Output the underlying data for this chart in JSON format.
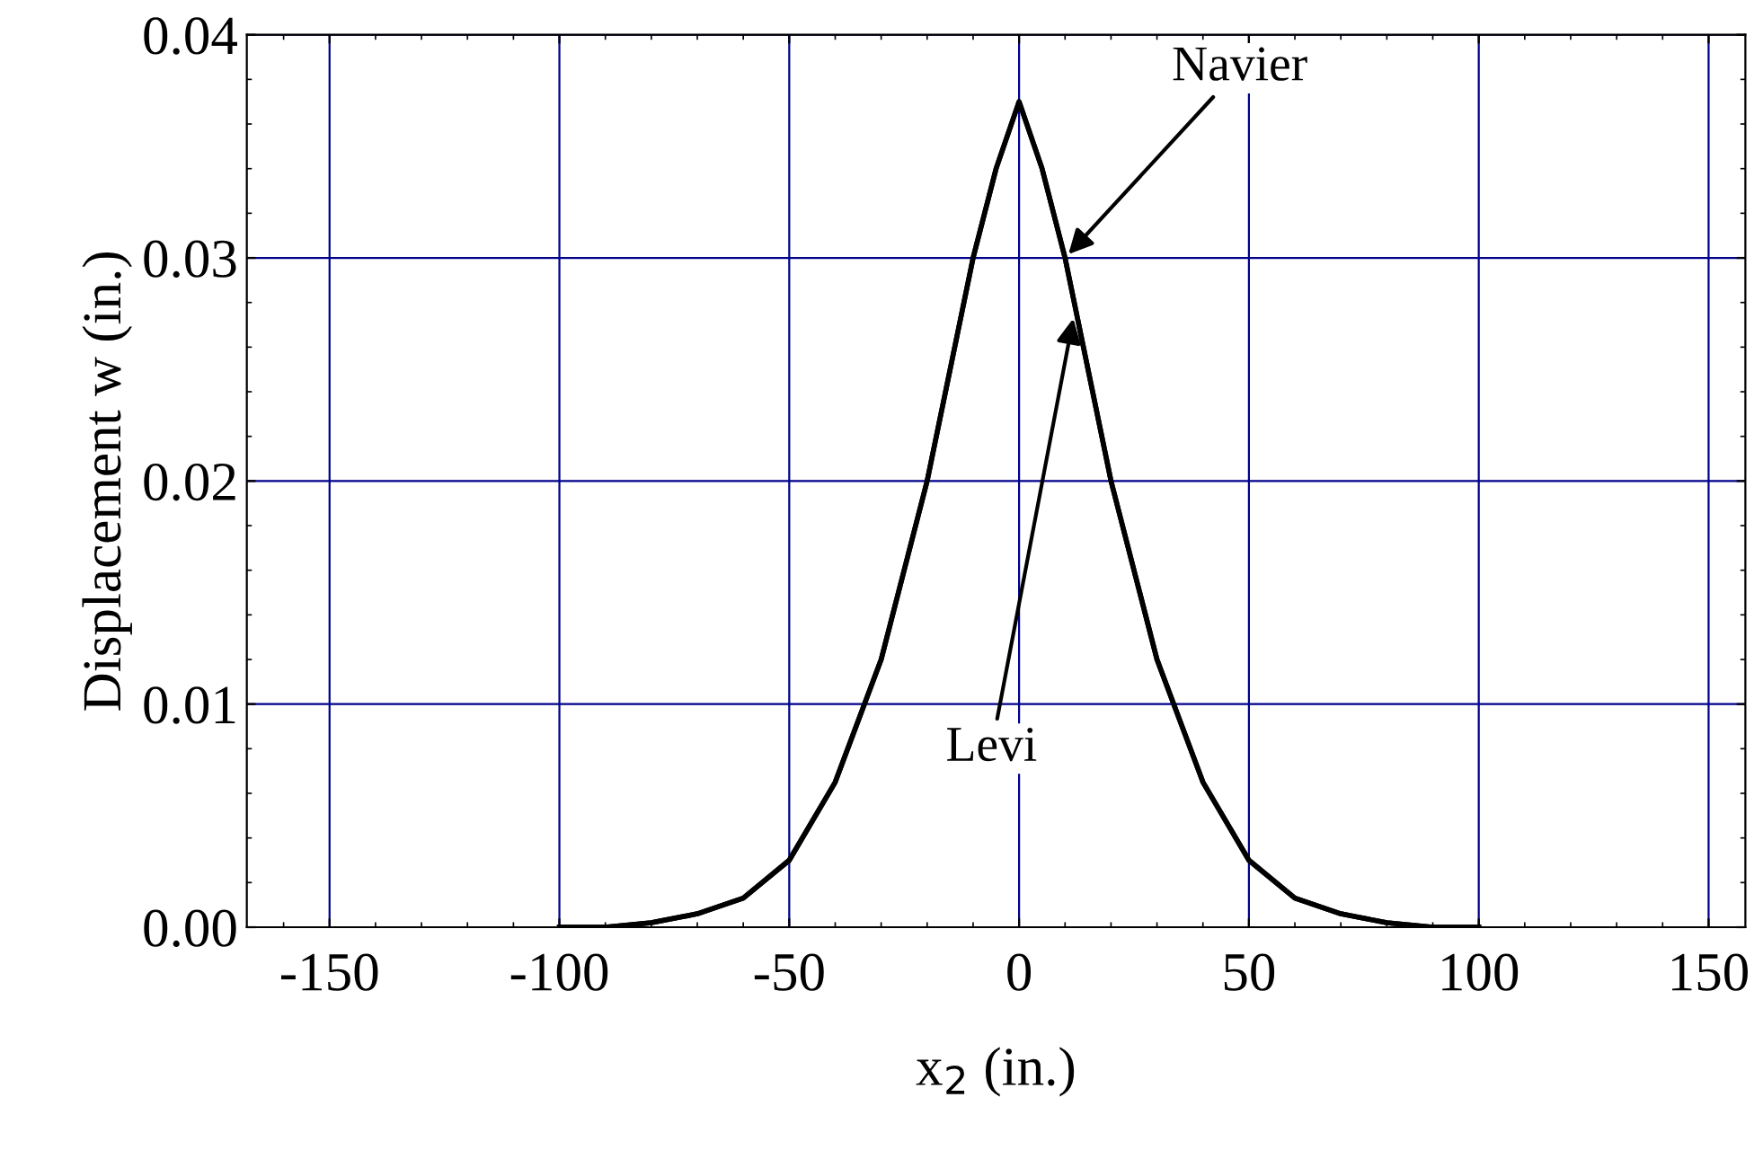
{
  "chart_data": {
    "type": "line",
    "xlabel": "x$_{2}$ (in.)",
    "ylabel": "Displacement w (in.)",
    "xlim": [
      -168,
      158
    ],
    "ylim": [
      0,
      0.04
    ],
    "xticks": [
      -150,
      -100,
      -50,
      0,
      50,
      100,
      150
    ],
    "yticks": [
      {
        "value": 0,
        "label": "0.00"
      },
      {
        "value": 0.01,
        "label": "0.01"
      },
      {
        "value": 0.02,
        "label": "0.02"
      },
      {
        "value": 0.03,
        "label": "0.03"
      },
      {
        "value": 0.04,
        "label": "0.04"
      }
    ],
    "grid": true,
    "marker": "none",
    "line_style": "solid",
    "x": [
      -100,
      -90,
      -80,
      -70,
      -60,
      -50,
      -40,
      -30,
      -20,
      -10,
      -5,
      0,
      5,
      10,
      20,
      30,
      40,
      50,
      60,
      70,
      80,
      90,
      100
    ],
    "series": [
      {
        "name": "Navier",
        "color": "#000000",
        "values": [
          0,
          0,
          0.0002,
          0.0006,
          0.0013,
          0.003,
          0.0065,
          0.012,
          0.02,
          0.03,
          0.034,
          0.037,
          0.034,
          0.03,
          0.02,
          0.012,
          0.0065,
          0.003,
          0.0013,
          0.0006,
          0.0002,
          0,
          0
        ]
      },
      {
        "name": "Levi",
        "color": "#000000",
        "values": [
          0,
          0,
          0.0002,
          0.0006,
          0.0013,
          0.003,
          0.0065,
          0.012,
          0.02,
          0.03,
          0.034,
          0.037,
          0.034,
          0.03,
          0.02,
          0.012,
          0.0065,
          0.003,
          0.0013,
          0.0006,
          0.0002,
          0,
          0
        ]
      }
    ]
  }
}
